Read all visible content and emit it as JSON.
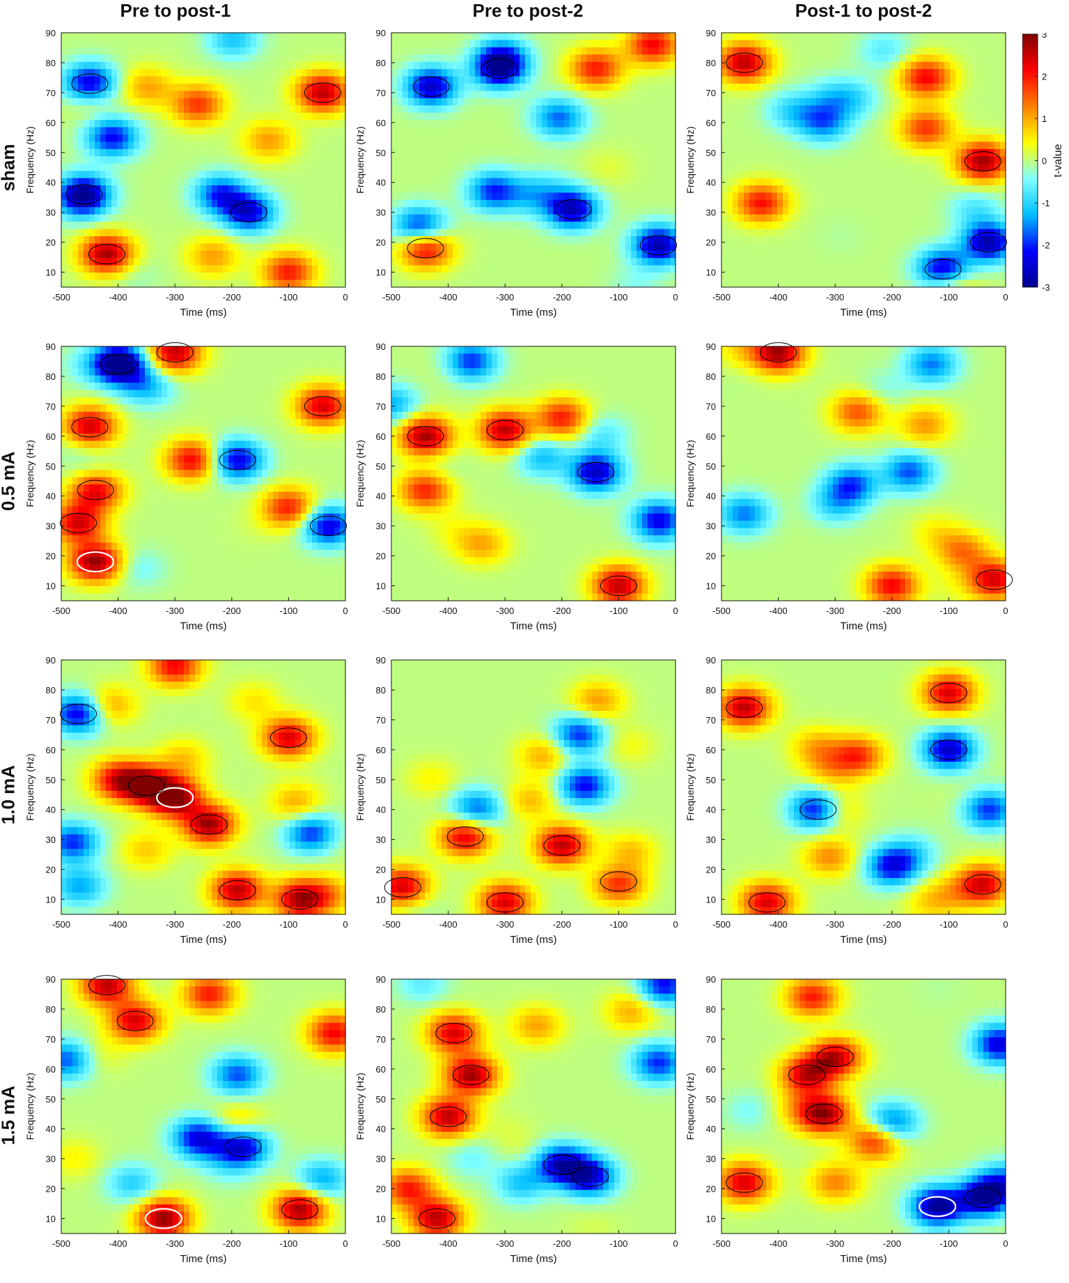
{
  "columns": [
    "Pre to post-1",
    "Pre to post-2",
    "Post-1 to post-2"
  ],
  "rows": [
    "sham",
    "0.5 mA",
    "1.0 mA",
    "1.5 mA"
  ],
  "colorbar": {
    "label": "t-value",
    "ticks": [
      3,
      2,
      1,
      0,
      -1,
      -2,
      -3
    ],
    "range": [
      -3,
      3
    ],
    "colormap": [
      "#00008f",
      "#0000ff",
      "#00bfff",
      "#7fffff",
      "#ffff00",
      "#ff8000",
      "#ff0000",
      "#800000"
    ]
  },
  "chart_data": {
    "type": "heatmap",
    "panels_layout": "4 rows x 3 columns",
    "xlabel": "Time (ms)",
    "ylabel": "Frequency (Hz)",
    "xlim": [
      -500,
      0
    ],
    "ylim": [
      5,
      90
    ],
    "xticks": [
      -500,
      -400,
      -300,
      -200,
      -100,
      0
    ],
    "yticks": [
      10,
      20,
      30,
      40,
      50,
      60,
      70,
      80,
      90
    ],
    "colorbar_label": "t-value",
    "clim": [
      -3,
      3
    ],
    "panels": [
      {
        "row": "sham",
        "column": "Pre to post-1",
        "clusters": [
          {
            "t": -450,
            "f": 73,
            "v": -2.6
          },
          {
            "t": -410,
            "f": 55,
            "v": -2.2
          },
          {
            "t": -460,
            "f": 36,
            "v": -2.8
          },
          {
            "t": -170,
            "f": 30,
            "v": -2.4
          },
          {
            "t": -420,
            "f": 16,
            "v": 2.8
          },
          {
            "t": -40,
            "f": 70,
            "v": 2.6
          },
          {
            "t": -260,
            "f": 66,
            "v": 1.8
          },
          {
            "t": -100,
            "f": 10,
            "v": 2.0
          },
          {
            "t": -220,
            "f": 36,
            "v": -2.0
          }
        ]
      },
      {
        "row": "sham",
        "column": "Pre to post-2",
        "clusters": [
          {
            "t": -310,
            "f": 78,
            "v": -2.6
          },
          {
            "t": -430,
            "f": 72,
            "v": -2.6
          },
          {
            "t": -140,
            "f": 78,
            "v": 2.0
          },
          {
            "t": -180,
            "f": 31,
            "v": -2.4
          },
          {
            "t": -320,
            "f": 37,
            "v": -2.0
          },
          {
            "t": -30,
            "f": 19,
            "v": -2.8
          },
          {
            "t": -450,
            "f": 25,
            "v": -2.2
          },
          {
            "t": -440,
            "f": 18,
            "v": 2.4
          },
          {
            "t": -40,
            "f": 86,
            "v": 2.2
          }
        ]
      },
      {
        "row": "sham",
        "column": "Post-1 to post-2",
        "clusters": [
          {
            "t": -460,
            "f": 80,
            "v": 2.6
          },
          {
            "t": -140,
            "f": 75,
            "v": 2.2
          },
          {
            "t": -40,
            "f": 47,
            "v": 2.8
          },
          {
            "t": -430,
            "f": 33,
            "v": 2.2
          },
          {
            "t": -110,
            "f": 11,
            "v": -2.6
          },
          {
            "t": -30,
            "f": 20,
            "v": -2.8
          },
          {
            "t": -320,
            "f": 60,
            "v": -1.6
          },
          {
            "t": -140,
            "f": 58,
            "v": 1.8
          }
        ]
      },
      {
        "row": "0.5 mA",
        "column": "Pre to post-1",
        "clusters": [
          {
            "t": -450,
            "f": 63,
            "v": 2.6
          },
          {
            "t": -440,
            "f": 42,
            "v": 2.6
          },
          {
            "t": -440,
            "f": 18,
            "v": 2.9
          },
          {
            "t": -400,
            "f": 84,
            "v": -2.6
          },
          {
            "t": -190,
            "f": 52,
            "v": -2.4
          },
          {
            "t": -30,
            "f": 30,
            "v": -2.4
          },
          {
            "t": -300,
            "f": 88,
            "v": 2.6
          },
          {
            "t": -40,
            "f": 70,
            "v": 2.4
          },
          {
            "t": -470,
            "f": 31,
            "v": 2.4
          },
          {
            "t": -270,
            "f": 52,
            "v": 2.2
          },
          {
            "t": -100,
            "f": 36,
            "v": 2.0
          }
        ]
      },
      {
        "row": "0.5 mA",
        "column": "Pre to post-2",
        "clusters": [
          {
            "t": -440,
            "f": 60,
            "v": 2.8
          },
          {
            "t": -300,
            "f": 62,
            "v": 2.6
          },
          {
            "t": -140,
            "f": 48,
            "v": -2.6
          },
          {
            "t": -100,
            "f": 10,
            "v": 2.6
          },
          {
            "t": -440,
            "f": 42,
            "v": 2.0
          },
          {
            "t": -30,
            "f": 32,
            "v": -2.2
          },
          {
            "t": -360,
            "f": 85,
            "v": -2.0
          },
          {
            "t": -200,
            "f": 66,
            "v": 2.0
          }
        ]
      },
      {
        "row": "0.5 mA",
        "column": "Post-1 to post-2",
        "clusters": [
          {
            "t": -400,
            "f": 88,
            "v": 2.8
          },
          {
            "t": -170,
            "f": 48,
            "v": -1.8
          },
          {
            "t": -270,
            "f": 44,
            "v": -1.8
          },
          {
            "t": -260,
            "f": 68,
            "v": 1.6
          },
          {
            "t": -200,
            "f": 10,
            "v": 2.2
          },
          {
            "t": -20,
            "f": 12,
            "v": 2.4
          },
          {
            "t": -460,
            "f": 34,
            "v": -1.6
          },
          {
            "t": -130,
            "f": 84,
            "v": -1.6
          }
        ]
      },
      {
        "row": "1.0 mA",
        "column": "Pre to post-1",
        "clusters": [
          {
            "t": -300,
            "f": 44,
            "v": 3.0
          },
          {
            "t": -240,
            "f": 35,
            "v": 2.8
          },
          {
            "t": -350,
            "f": 48,
            "v": 2.8
          },
          {
            "t": -80,
            "f": 10,
            "v": 2.6
          },
          {
            "t": -190,
            "f": 13,
            "v": 2.6
          },
          {
            "t": -470,
            "f": 72,
            "v": -2.4
          },
          {
            "t": -100,
            "f": 64,
            "v": 2.4
          },
          {
            "t": -400,
            "f": 50,
            "v": 2.2
          },
          {
            "t": -300,
            "f": 88,
            "v": 2.2
          },
          {
            "t": -480,
            "f": 29,
            "v": -2.0
          },
          {
            "t": -60,
            "f": 32,
            "v": -2.0
          }
        ]
      },
      {
        "row": "1.0 mA",
        "column": "Pre to post-2",
        "clusters": [
          {
            "t": -100,
            "f": 16,
            "v": 2.8
          },
          {
            "t": -480,
            "f": 14,
            "v": 2.6
          },
          {
            "t": -200,
            "f": 28,
            "v": 2.6
          },
          {
            "t": -370,
            "f": 31,
            "v": 2.4
          },
          {
            "t": -300,
            "f": 9,
            "v": 2.4
          },
          {
            "t": -160,
            "f": 48,
            "v": -2.2
          },
          {
            "t": -170,
            "f": 65,
            "v": -2.0
          },
          {
            "t": -350,
            "f": 40,
            "v": -1.8
          }
        ]
      },
      {
        "row": "1.0 mA",
        "column": "Post-1 to post-2",
        "clusters": [
          {
            "t": -330,
            "f": 40,
            "v": -2.8
          },
          {
            "t": -100,
            "f": 60,
            "v": -2.6
          },
          {
            "t": -460,
            "f": 74,
            "v": 2.6
          },
          {
            "t": -420,
            "f": 9,
            "v": 2.4
          },
          {
            "t": -40,
            "f": 15,
            "v": 2.4
          },
          {
            "t": -200,
            "f": 21,
            "v": -2.2
          },
          {
            "t": -100,
            "f": 79,
            "v": 2.4
          },
          {
            "t": -30,
            "f": 40,
            "v": -2.0
          },
          {
            "t": -260,
            "f": 58,
            "v": 1.8
          }
        ]
      },
      {
        "row": "1.5 mA",
        "column": "Pre to post-1",
        "clusters": [
          {
            "t": -320,
            "f": 10,
            "v": 2.9
          },
          {
            "t": -80,
            "f": 13,
            "v": 2.8
          },
          {
            "t": -420,
            "f": 88,
            "v": 2.6
          },
          {
            "t": -370,
            "f": 76,
            "v": 2.4
          },
          {
            "t": -260,
            "f": 37,
            "v": -2.2
          },
          {
            "t": -180,
            "f": 34,
            "v": -2.4
          },
          {
            "t": -20,
            "f": 72,
            "v": 2.2
          },
          {
            "t": -240,
            "f": 85,
            "v": 2.0
          },
          {
            "t": -490,
            "f": 63,
            "v": -1.8
          },
          {
            "t": -190,
            "f": 58,
            "v": -1.8
          }
        ]
      },
      {
        "row": "1.5 mA",
        "column": "Pre to post-2",
        "clusters": [
          {
            "t": -360,
            "f": 58,
            "v": 2.8
          },
          {
            "t": -400,
            "f": 44,
            "v": 2.6
          },
          {
            "t": -390,
            "f": 72,
            "v": 2.4
          },
          {
            "t": -200,
            "f": 28,
            "v": -2.6
          },
          {
            "t": -150,
            "f": 24,
            "v": -2.4
          },
          {
            "t": -420,
            "f": 10,
            "v": 2.6
          },
          {
            "t": -30,
            "f": 62,
            "v": -2.0
          },
          {
            "t": -470,
            "f": 20,
            "v": 2.0
          },
          {
            "t": -20,
            "f": 88,
            "v": -2.2
          }
        ]
      },
      {
        "row": "1.5 mA",
        "column": "Post-1 to post-2",
        "clusters": [
          {
            "t": -320,
            "f": 45,
            "v": 2.8
          },
          {
            "t": -300,
            "f": 64,
            "v": 2.6
          },
          {
            "t": -350,
            "f": 58,
            "v": 2.4
          },
          {
            "t": -120,
            "f": 14,
            "v": -3.0
          },
          {
            "t": -40,
            "f": 17,
            "v": -2.8
          },
          {
            "t": -460,
            "f": 22,
            "v": 2.4
          },
          {
            "t": -10,
            "f": 68,
            "v": -2.2
          },
          {
            "t": -230,
            "f": 36,
            "v": 2.0
          },
          {
            "t": -340,
            "f": 84,
            "v": 2.0
          },
          {
            "t": -200,
            "f": 42,
            "v": -1.8
          }
        ]
      }
    ]
  }
}
